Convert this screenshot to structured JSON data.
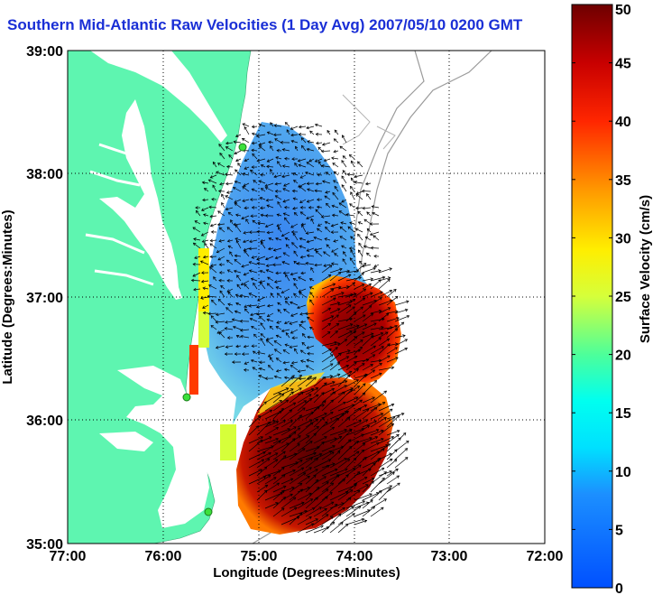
{
  "title": "Southern Mid-Atlantic Raw Velocities (1 Day Avg) 2007/05/10 0200 GMT",
  "map": {
    "xlabel": "Longitude (Degrees:Minutes)",
    "ylabel": "Latitude (Degrees:Minutes)",
    "x_ticks": [
      "77:00",
      "76:00",
      "75:00",
      "74:00",
      "73:00",
      "72:00"
    ],
    "y_ticks": [
      "39:00",
      "38:00",
      "37:00",
      "36:00",
      "35:00"
    ],
    "x_range": [
      -77,
      -72
    ],
    "y_range": [
      35,
      39
    ],
    "grid": true,
    "land_color": "#5ef5b0",
    "water_color": "#ffffff",
    "station_color": "#3be03b"
  },
  "colorbar": {
    "label": "Surface Velocity (cm/s)",
    "ticks": [
      "0",
      "5",
      "10",
      "15",
      "20",
      "25",
      "30",
      "35",
      "40",
      "45",
      "50"
    ],
    "range": [
      0,
      50
    ],
    "units": "cm/s"
  }
}
